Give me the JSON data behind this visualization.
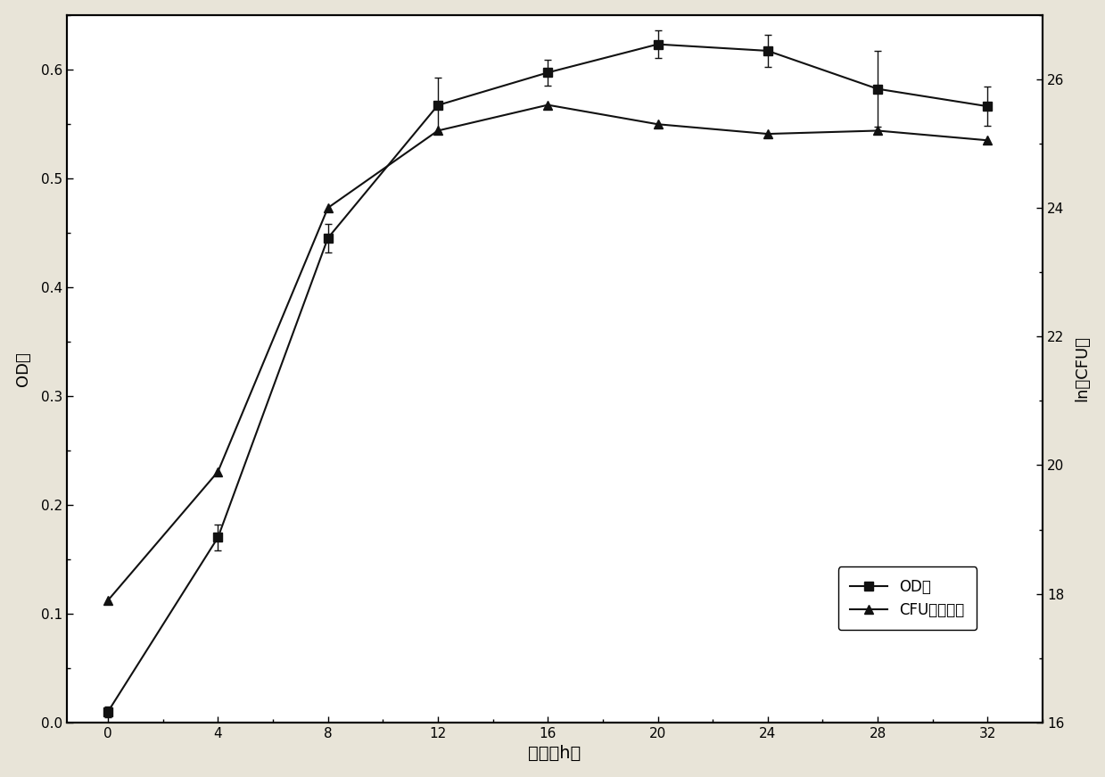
{
  "time": [
    0,
    4,
    8,
    12,
    16,
    20,
    24,
    28,
    32
  ],
  "od_values": [
    0.01,
    0.17,
    0.445,
    0.567,
    0.597,
    0.623,
    0.617,
    0.582,
    0.566
  ],
  "od_errors": [
    0.005,
    0.012,
    0.013,
    0.025,
    0.012,
    0.013,
    0.015,
    0.035,
    0.018
  ],
  "cfu_values": [
    17.9,
    19.9,
    24.0,
    25.2,
    25.6,
    25.3,
    25.15,
    25.2,
    25.05
  ],
  "cfu_errors": [
    0.0,
    0.0,
    0.0,
    0.0,
    0.0,
    0.0,
    0.0,
    0.0,
    0.0
  ],
  "od_ylim": [
    0.0,
    0.65
  ],
  "od_yticks": [
    0.0,
    0.1,
    0.2,
    0.3,
    0.4,
    0.5,
    0.6
  ],
  "cfu_ylim": [
    16,
    27
  ],
  "cfu_yticks": [
    16,
    18,
    20,
    22,
    24,
    26
  ],
  "xlabel": "时间（h）",
  "ylabel_left": "OD值",
  "ylabel_right": "ln（CFU）",
  "legend_od": "OD值",
  "legend_cfu": "CFU自然对数",
  "line_color": "#111111",
  "marker_square": "s",
  "marker_triangle": "^",
  "marker_size": 7,
  "line_width": 1.5,
  "plot_bg_color": "#ffffff",
  "fig_bg_color": "#e8e4d8"
}
